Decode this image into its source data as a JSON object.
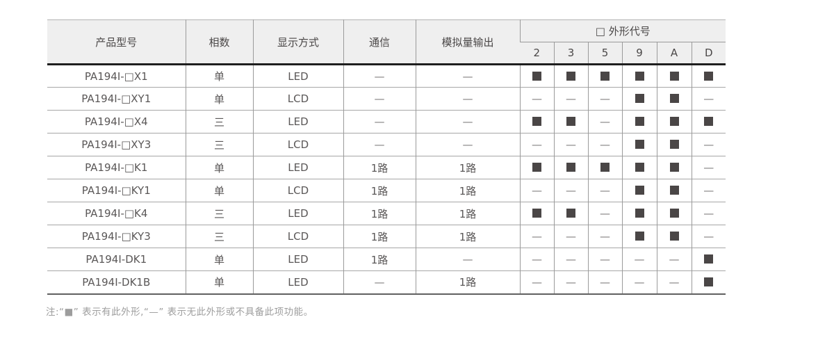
{
  "table": {
    "columns": [
      "产品型号",
      "相数",
      "显示方式",
      "通信",
      "模拟量输出"
    ],
    "shape_group_label": "□ 外形代号",
    "shape_codes": [
      "2",
      "3",
      "5",
      "9",
      "A",
      "D"
    ],
    "dash": "—",
    "filled_symbol": "■",
    "rows": [
      {
        "model": "PA194I-□X1",
        "phase": "单",
        "display": "LED",
        "comm": "—",
        "analog": "—",
        "shapes": [
          1,
          1,
          1,
          1,
          1,
          1
        ]
      },
      {
        "model": "PA194I-□XY1",
        "phase": "单",
        "display": "LCD",
        "comm": "—",
        "analog": "—",
        "shapes": [
          0,
          0,
          0,
          1,
          1,
          0
        ]
      },
      {
        "model": "PA194I-□X4",
        "phase": "三",
        "display": "LED",
        "comm": "—",
        "analog": "—",
        "shapes": [
          1,
          1,
          0,
          1,
          1,
          1
        ]
      },
      {
        "model": "PA194I-□XY3",
        "phase": "三",
        "display": "LCD",
        "comm": "—",
        "analog": "—",
        "shapes": [
          0,
          0,
          0,
          1,
          1,
          0
        ]
      },
      {
        "model": "PA194I-□K1",
        "phase": "单",
        "display": "LED",
        "comm": "1路",
        "analog": "1路",
        "shapes": [
          1,
          1,
          1,
          1,
          1,
          0
        ]
      },
      {
        "model": "PA194I-□KY1",
        "phase": "单",
        "display": "LCD",
        "comm": "1路",
        "analog": "1路",
        "shapes": [
          0,
          0,
          0,
          1,
          1,
          0
        ]
      },
      {
        "model": "PA194I-□K4",
        "phase": "三",
        "display": "LED",
        "comm": "1路",
        "analog": "1路",
        "shapes": [
          1,
          1,
          0,
          1,
          1,
          0
        ]
      },
      {
        "model": "PA194I-□KY3",
        "phase": "三",
        "display": "LCD",
        "comm": "1路",
        "analog": "1路",
        "shapes": [
          0,
          0,
          0,
          1,
          1,
          0
        ]
      },
      {
        "model": "PA194I-DK1",
        "phase": "单",
        "display": "LED",
        "comm": "1路",
        "analog": "—",
        "shapes": [
          0,
          0,
          0,
          0,
          0,
          1
        ]
      },
      {
        "model": "PA194I-DK1B",
        "phase": "单",
        "display": "LED",
        "comm": "—",
        "analog": "1路",
        "shapes": [
          0,
          0,
          0,
          0,
          0,
          1
        ]
      }
    ]
  },
  "note": "注:“■” 表示有此外形,“—” 表示无此外形或不具备此项功能。",
  "colors": {
    "header_bg": "#efefef",
    "square": "#4a4646",
    "note_text": "#9d9d9d",
    "body_text": "#5a5757"
  }
}
